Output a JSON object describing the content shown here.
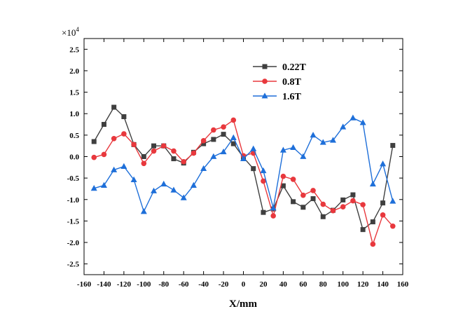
{
  "chart_data": {
    "type": "line",
    "xlabel": "X/mm",
    "ylabel": "",
    "scale_label": "×10",
    "scale_exponent": "4",
    "xlim": [
      -160,
      160
    ],
    "ylim": [
      -2.75,
      2.75
    ],
    "xticks": [
      -160,
      -140,
      -120,
      -100,
      -80,
      -60,
      -40,
      -20,
      0,
      20,
      40,
      60,
      80,
      100,
      120,
      140,
      160
    ],
    "yticks": [
      2.5,
      2.0,
      1.5,
      1.0,
      0.5,
      0.0,
      -0.5,
      -1.0,
      -1.5,
      -2.0,
      -2.5
    ],
    "ytick_labels": [
      "2.5",
      "2.0",
      "1.5",
      "1.0",
      "0.5",
      "0.0",
      "-0.5",
      "-1.0",
      "-1.5",
      "-2.0",
      "-2.5"
    ],
    "grid": false,
    "legend_position": "top-center",
    "x": [
      -150,
      -140,
      -130,
      -120,
      -110,
      -100,
      -90,
      -80,
      -70,
      -60,
      -50,
      -40,
      -30,
      -20,
      -10,
      0,
      10,
      20,
      30,
      40,
      50,
      60,
      70,
      80,
      90,
      100,
      110,
      120,
      130,
      140,
      150
    ],
    "series": [
      {
        "name": "0.22T",
        "color": "#3f3f3f",
        "marker": "square",
        "values": [
          0.35,
          0.75,
          1.15,
          0.93,
          0.28,
          0.0,
          0.25,
          0.25,
          -0.05,
          -0.15,
          0.1,
          0.3,
          0.4,
          0.52,
          0.3,
          -0.02,
          -0.28,
          -1.3,
          -1.22,
          -0.68,
          -1.05,
          -1.18,
          -0.98,
          -1.4,
          -1.25,
          -1.01,
          -0.89,
          -1.7,
          -1.52,
          -1.08,
          0.26
        ]
      },
      {
        "name": "0.8T",
        "color": "#e8383d",
        "marker": "circle",
        "values": [
          -0.02,
          0.05,
          0.42,
          0.53,
          0.28,
          -0.16,
          0.13,
          0.25,
          0.13,
          -0.12,
          0.08,
          0.37,
          0.62,
          0.69,
          0.85,
          0.02,
          0.08,
          -0.57,
          -1.38,
          -0.46,
          -0.53,
          -0.9,
          -0.79,
          -1.11,
          -1.26,
          -1.17,
          -1.03,
          -1.12,
          -2.04,
          -1.36,
          -1.62
        ]
      },
      {
        "name": "1.6T",
        "color": "#1e6fd9",
        "marker": "triangle",
        "values": [
          -0.74,
          -0.67,
          -0.31,
          -0.23,
          -0.54,
          -1.28,
          -0.8,
          -0.64,
          -0.78,
          -0.96,
          -0.67,
          -0.28,
          0.0,
          0.11,
          0.44,
          -0.05,
          0.18,
          -0.33,
          -1.2,
          0.15,
          0.21,
          0.0,
          0.5,
          0.33,
          0.38,
          0.69,
          0.9,
          0.79,
          -0.64,
          -0.17,
          -1.04
        ]
      }
    ]
  }
}
